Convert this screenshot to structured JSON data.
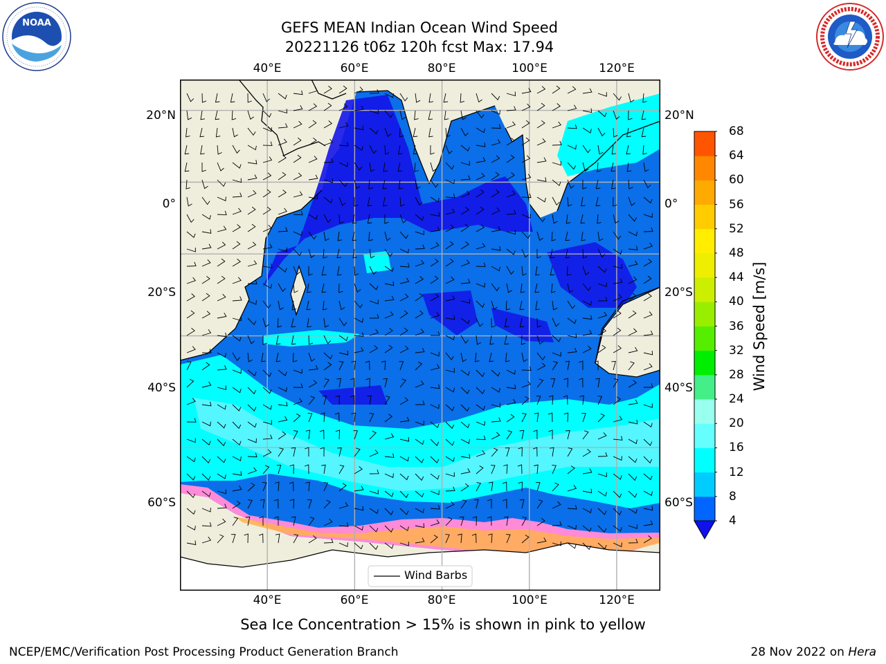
{
  "title": {
    "line1": "GEFS MEAN Indian Ocean Wind Speed",
    "line2": "20221126 t06z 120h fcst   Max: 17.94"
  },
  "logos": {
    "left": {
      "name": "NOAA",
      "ring_text": "NATIONAL OCEANIC AND ATMOSPHERIC ADMINISTRATION · U.S. DEPARTMENT OF COMMERCE"
    },
    "right": {
      "name": "NATIONAL WEATHER SERVICE"
    }
  },
  "map": {
    "lon_range": [
      20,
      130
    ],
    "lat_range": [
      -75,
      28
    ],
    "longitude_labels": [
      "40°E",
      "60°E",
      "80°E",
      "100°E",
      "120°E"
    ],
    "longitude_values": [
      40,
      60,
      80,
      100,
      120
    ],
    "latitude_labels": [
      "20°N",
      "0°",
      "20°S",
      "40°S",
      "60°S"
    ],
    "latitude_values": [
      20,
      0,
      -20,
      -40,
      -60
    ],
    "grid": true,
    "land_color": "#efeedd",
    "legend": {
      "label": "Wind Barbs",
      "placement": "bottom-center"
    }
  },
  "colorbar": {
    "label": "Wind Speed [m/s]",
    "ticks": [
      4,
      8,
      12,
      16,
      20,
      24,
      28,
      32,
      36,
      40,
      44,
      48,
      52,
      56,
      60,
      64,
      68
    ],
    "colors": [
      "#0066ff",
      "#00ccff",
      "#00ffff",
      "#66ffff",
      "#99ffee",
      "#44ee88",
      "#00ee00",
      "#55ee00",
      "#99ee00",
      "#ccee00",
      "#eeee00",
      "#ffee00",
      "#ffcc00",
      "#ffaa00",
      "#ff8800",
      "#ff5500",
      "#ff2200"
    ],
    "extend_color": "#1111ee"
  },
  "footer": {
    "note": "Sea Ice Concentration > 15% is shown in pink to yellow",
    "left": "NCEP/EMC/Verification Post Processing Product Generation Branch",
    "right_date": "28 Nov 2022 on ",
    "right_machine": "Hera"
  }
}
